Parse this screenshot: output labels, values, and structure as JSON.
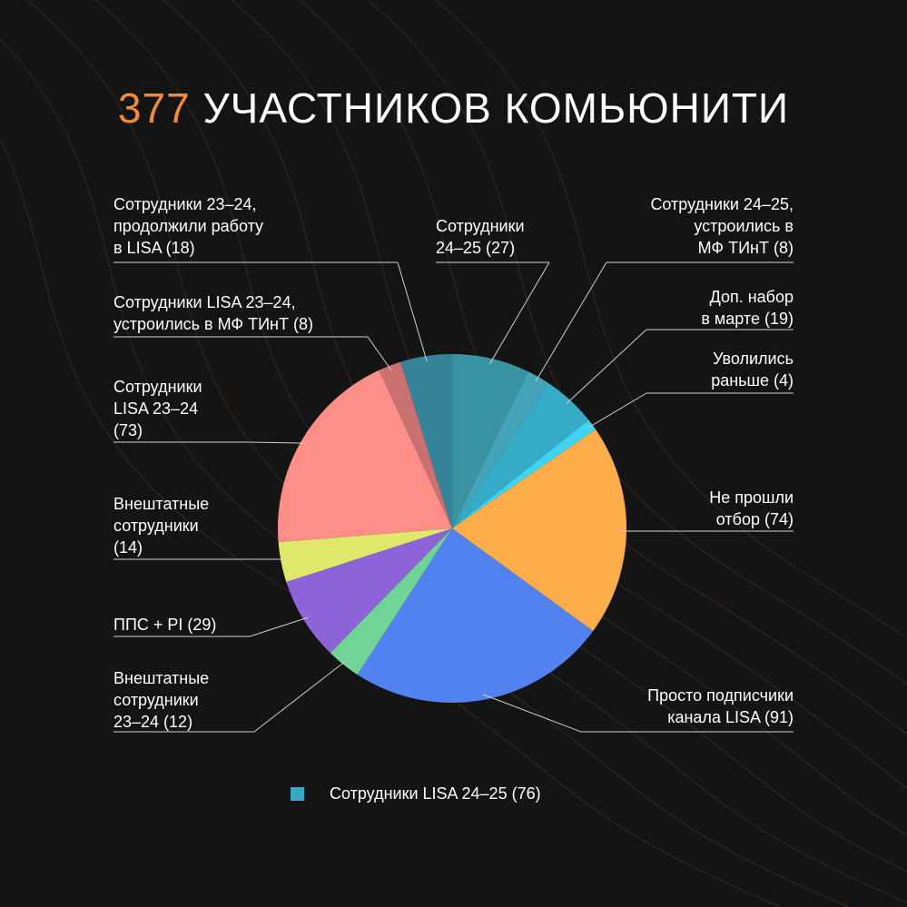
{
  "colors": {
    "background": "#141414",
    "accent": "#f08a3c",
    "wave": "#5a3a22",
    "leader": "#cfcfcf"
  },
  "title": {
    "number": "377",
    "text": "УЧАСТНИКОВ КОМЬЮНИТИ"
  },
  "legend": {
    "label": "Сотрудники LISA 24–25 (76)",
    "color": "#35a9c6"
  },
  "chart_data": {
    "type": "pie",
    "title": "377 УЧАСТНИКОВ КОМЬЮНИТИ",
    "start": "top",
    "direction": "clockwise",
    "slices": [
      {
        "label": "Сотрудники\n24–25 (27)",
        "value": 27,
        "color": "#3a93a3"
      },
      {
        "label": "Сотрудники 24–25,\nустроились в\nМФ ТИнТ (8)",
        "value": 8,
        "color": "#44a3b6"
      },
      {
        "label": "Доп. набор\nв марте (19)",
        "value": 19,
        "color": "#35abc8"
      },
      {
        "label": "Уволились\nраньше (4)",
        "value": 4,
        "color": "#3fd4f4"
      },
      {
        "label": "Не прошли\nотбор (74)",
        "value": 74,
        "color": "#fdae4b"
      },
      {
        "label": "Просто  подписчики\nканала LISA (91)",
        "value": 91,
        "color": "#5182ef"
      },
      {
        "label": "Внештатные\nсотрудники\n23–24 (12)",
        "value": 12,
        "color": "#6fd496"
      },
      {
        "label": "ППС + PI (29)",
        "value": 29,
        "color": "#8c63d9"
      },
      {
        "label": "Внештатные\nсотрудники\n(14)",
        "value": 14,
        "color": "#dfe86a"
      },
      {
        "label": "Сотрудники\nLISA 23–24\n(73)",
        "value": 73,
        "color": "#fe8f88"
      },
      {
        "label": "Сотрудники LISA 23–24,\nустроились в МФ ТИнТ (8)",
        "value": 8,
        "color": "#c97171"
      },
      {
        "label": "Сотрудники 23–24,\nпродолжили работу\nв LISA (18)",
        "value": 18,
        "color": "#35849a"
      }
    ]
  }
}
